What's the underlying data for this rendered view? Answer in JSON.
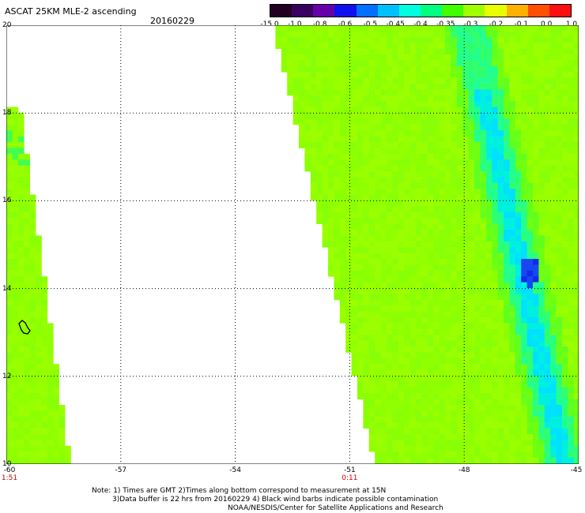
{
  "header": {
    "title": "ASCAT 25KM MLE-2 ascending",
    "date": "20160229"
  },
  "colorbar": {
    "labels": [
      "-15.0",
      "-1.0",
      "-0.8",
      "-0.6",
      "-0.5",
      "-0.45",
      "-0.4",
      "-0.35",
      "-0.3",
      "-0.2",
      "-0.1",
      "0.0",
      "1.0"
    ],
    "colors": [
      "#220022",
      "#3a0060",
      "#6600aa",
      "#1010ee",
      "#0070ff",
      "#00c0ff",
      "#00ffe0",
      "#00ff80",
      "#40ff00",
      "#a0ff00",
      "#e8ff00",
      "#ffb000",
      "#ff5000",
      "#ff1010"
    ]
  },
  "map": {
    "lat_ticks": [
      "20",
      "18",
      "16",
      "14",
      "12",
      "10"
    ],
    "lon_ticks": [
      "-60",
      "-57",
      "-54",
      "-51",
      "-48",
      "-45"
    ],
    "time_labels": [
      {
        "lon": "-60",
        "text": "1:51"
      },
      {
        "lon": "-51",
        "text": "0:11"
      }
    ],
    "swath_fill_color": "#90ff00"
  },
  "notes": {
    "line1": "Note: 1) Times are GMT 2)Times along bottom correspond to measurement at 15N",
    "line2": "3)Data buffer is 22 hrs from 20160229 4) Black wind barbs indicate possible contamination",
    "line3": "NOAA/NESDIS/Center for Satellite Applications and Research"
  }
}
